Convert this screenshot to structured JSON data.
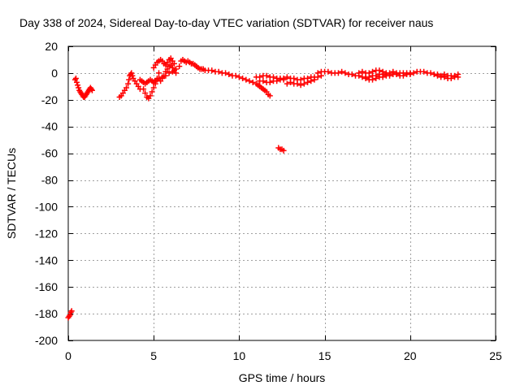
{
  "chart_data": {
    "type": "scatter",
    "title": "Day 338 of 2024, Sidereal Day-to-day VTEC variation (SDTVAR) for receiver naus",
    "xlabel": "GPS time / hours",
    "ylabel": "SDTVAR / TECUs",
    "xlim": [
      0,
      25
    ],
    "ylim": [
      -200,
      20
    ],
    "xticks": [
      0,
      5,
      10,
      15,
      20,
      25
    ],
    "yticks": [
      -200,
      -180,
      -160,
      -140,
      -120,
      -100,
      -80,
      -60,
      -40,
      -20,
      0,
      20
    ],
    "grid": true,
    "marker": "plus",
    "series": [
      {
        "name": "SDTVAR",
        "color": "#ff0000",
        "points": [
          [
            0.0,
            -183
          ],
          [
            0.05,
            -182
          ],
          [
            0.1,
            -181
          ],
          [
            0.15,
            -179
          ],
          [
            0.2,
            -178
          ],
          [
            0.4,
            -5
          ],
          [
            0.45,
            -4
          ],
          [
            0.5,
            -7
          ],
          [
            0.55,
            -9
          ],
          [
            0.6,
            -11
          ],
          [
            0.65,
            -13
          ],
          [
            0.7,
            -14
          ],
          [
            0.75,
            -15
          ],
          [
            0.8,
            -16
          ],
          [
            0.85,
            -17
          ],
          [
            0.9,
            -18
          ],
          [
            0.95,
            -18
          ],
          [
            1.0,
            -17
          ],
          [
            1.05,
            -16
          ],
          [
            1.1,
            -15
          ],
          [
            1.15,
            -14
          ],
          [
            1.2,
            -13
          ],
          [
            1.25,
            -12
          ],
          [
            1.3,
            -11
          ],
          [
            1.35,
            -12
          ],
          [
            1.4,
            -13
          ],
          [
            3.0,
            -18
          ],
          [
            3.1,
            -17
          ],
          [
            3.2,
            -15
          ],
          [
            3.3,
            -13
          ],
          [
            3.4,
            -11
          ],
          [
            3.5,
            -8
          ],
          [
            3.55,
            -5
          ],
          [
            3.6,
            -2
          ],
          [
            3.65,
            -1
          ],
          [
            3.7,
            0
          ],
          [
            3.75,
            -2
          ],
          [
            3.8,
            -4
          ],
          [
            3.9,
            -6
          ],
          [
            4.0,
            -8
          ],
          [
            4.1,
            -10
          ],
          [
            4.2,
            -12
          ],
          [
            4.2,
            -5
          ],
          [
            4.3,
            -6
          ],
          [
            4.4,
            -7
          ],
          [
            4.5,
            -8
          ],
          [
            4.6,
            -7
          ],
          [
            4.7,
            -6
          ],
          [
            4.8,
            -5
          ],
          [
            4.9,
            -6
          ],
          [
            5.0,
            -7
          ],
          [
            5.1,
            -6
          ],
          [
            5.2,
            -5
          ],
          [
            4.4,
            -12
          ],
          [
            4.5,
            -15
          ],
          [
            4.6,
            -18
          ],
          [
            4.7,
            -19
          ],
          [
            4.8,
            -17
          ],
          [
            4.9,
            -14
          ],
          [
            5.0,
            -11
          ],
          [
            5.1,
            -8
          ],
          [
            5.2,
            -4
          ],
          [
            5.3,
            0
          ],
          [
            5.0,
            4
          ],
          [
            5.1,
            6
          ],
          [
            5.2,
            8
          ],
          [
            5.3,
            9
          ],
          [
            5.4,
            10
          ],
          [
            5.5,
            9
          ],
          [
            5.6,
            7
          ],
          [
            5.7,
            6
          ],
          [
            5.8,
            8
          ],
          [
            5.9,
            10
          ],
          [
            6.0,
            11
          ],
          [
            6.1,
            9
          ],
          [
            6.2,
            7
          ],
          [
            5.4,
            -6
          ],
          [
            5.5,
            -4
          ],
          [
            5.6,
            -2
          ],
          [
            5.7,
            1
          ],
          [
            5.8,
            3
          ],
          [
            5.9,
            5
          ],
          [
            6.0,
            6
          ],
          [
            6.1,
            4
          ],
          [
            6.2,
            2
          ],
          [
            6.3,
            0
          ],
          [
            5.3,
            -4
          ],
          [
            5.5,
            -3
          ],
          [
            5.7,
            -2
          ],
          [
            5.9,
            0
          ],
          [
            6.1,
            1
          ],
          [
            6.3,
            3
          ],
          [
            6.5,
            5
          ],
          [
            6.6,
            9
          ],
          [
            6.7,
            10
          ],
          [
            6.8,
            9
          ],
          [
            6.9,
            8
          ],
          [
            7.0,
            9
          ],
          [
            7.1,
            8
          ],
          [
            7.2,
            7
          ],
          [
            7.3,
            7
          ],
          [
            7.4,
            6
          ],
          [
            7.5,
            5
          ],
          [
            7.6,
            4
          ],
          [
            7.7,
            3
          ],
          [
            7.8,
            3
          ],
          [
            7.9,
            3
          ],
          [
            8.0,
            2
          ],
          [
            8.2,
            2
          ],
          [
            8.4,
            2
          ],
          [
            8.6,
            1
          ],
          [
            8.8,
            1
          ],
          [
            9.0,
            0
          ],
          [
            9.2,
            0
          ],
          [
            9.4,
            -1
          ],
          [
            9.6,
            -2
          ],
          [
            9.8,
            -2
          ],
          [
            10.0,
            -3
          ],
          [
            10.2,
            -4
          ],
          [
            10.4,
            -5
          ],
          [
            10.6,
            -6
          ],
          [
            10.8,
            -7
          ],
          [
            11.0,
            -8
          ],
          [
            11.1,
            -9
          ],
          [
            11.2,
            -10
          ],
          [
            11.3,
            -11
          ],
          [
            11.4,
            -12
          ],
          [
            11.5,
            -13
          ],
          [
            11.6,
            -14
          ],
          [
            11.7,
            -16
          ],
          [
            11.8,
            -17
          ],
          [
            11.0,
            -3
          ],
          [
            11.2,
            -3
          ],
          [
            11.4,
            -2
          ],
          [
            11.6,
            -2
          ],
          [
            11.8,
            -3
          ],
          [
            12.0,
            -3
          ],
          [
            12.2,
            -4
          ],
          [
            12.4,
            -4
          ],
          [
            12.6,
            -4
          ],
          [
            11.2,
            -6
          ],
          [
            11.4,
            -6
          ],
          [
            11.6,
            -7
          ],
          [
            11.8,
            -7
          ],
          [
            12.0,
            -6
          ],
          [
            12.2,
            -6
          ],
          [
            12.4,
            -5
          ],
          [
            12.6,
            -5
          ],
          [
            12.3,
            -56
          ],
          [
            12.4,
            -57
          ],
          [
            12.5,
            -57
          ],
          [
            12.6,
            -58
          ],
          [
            12.8,
            -3
          ],
          [
            13.0,
            -4
          ],
          [
            13.2,
            -4
          ],
          [
            13.4,
            -5
          ],
          [
            13.6,
            -5
          ],
          [
            13.8,
            -4
          ],
          [
            14.0,
            -4
          ],
          [
            14.2,
            -3
          ],
          [
            14.4,
            -3
          ],
          [
            12.8,
            -8
          ],
          [
            13.0,
            -7
          ],
          [
            13.2,
            -8
          ],
          [
            13.4,
            -8
          ],
          [
            13.6,
            -9
          ],
          [
            13.8,
            -8
          ],
          [
            14.0,
            -7
          ],
          [
            14.2,
            -6
          ],
          [
            14.4,
            -5
          ],
          [
            14.6,
            -3
          ],
          [
            14.8,
            -2
          ],
          [
            14.6,
            0
          ],
          [
            14.8,
            1
          ],
          [
            15.0,
            1
          ],
          [
            15.2,
            1
          ],
          [
            15.4,
            0
          ],
          [
            15.6,
            0
          ],
          [
            15.8,
            0
          ],
          [
            16.0,
            1
          ],
          [
            16.2,
            0
          ],
          [
            16.4,
            -1
          ],
          [
            16.6,
            -1
          ],
          [
            16.8,
            -2
          ],
          [
            17.0,
            -2
          ],
          [
            17.2,
            -3
          ],
          [
            17.4,
            -4
          ],
          [
            17.6,
            -5
          ],
          [
            17.8,
            -5
          ],
          [
            18.0,
            -4
          ],
          [
            18.2,
            -3
          ],
          [
            18.4,
            -3
          ],
          [
            18.6,
            -2
          ],
          [
            18.8,
            -2
          ],
          [
            19.0,
            -1
          ],
          [
            19.2,
            -1
          ],
          [
            19.4,
            -2
          ],
          [
            19.6,
            -2
          ],
          [
            19.8,
            -1
          ],
          [
            20.0,
            -1
          ],
          [
            17.0,
            0
          ],
          [
            17.2,
            1
          ],
          [
            17.4,
            0
          ],
          [
            17.6,
            0
          ],
          [
            17.8,
            1
          ],
          [
            18.0,
            2
          ],
          [
            18.2,
            2
          ],
          [
            18.4,
            1
          ],
          [
            18.6,
            0
          ],
          [
            18.8,
            0
          ],
          [
            19.0,
            1
          ],
          [
            19.2,
            0
          ],
          [
            19.4,
            0
          ],
          [
            19.6,
            0
          ],
          [
            19.8,
            0
          ],
          [
            20.0,
            0
          ],
          [
            17.4,
            -3
          ],
          [
            17.6,
            -3
          ],
          [
            17.8,
            -2
          ],
          [
            18.0,
            -2
          ],
          [
            18.2,
            -1
          ],
          [
            18.4,
            -1
          ],
          [
            18.6,
            -1
          ],
          [
            20.2,
            0
          ],
          [
            20.4,
            1
          ],
          [
            20.6,
            1
          ],
          [
            20.8,
            1
          ],
          [
            21.0,
            0
          ],
          [
            21.2,
            0
          ],
          [
            21.4,
            -1
          ],
          [
            21.6,
            -2
          ],
          [
            21.8,
            -3
          ],
          [
            22.0,
            -3
          ],
          [
            22.2,
            -4
          ],
          [
            22.4,
            -4
          ],
          [
            22.6,
            -3
          ],
          [
            22.8,
            -3
          ],
          [
            21.6,
            -1
          ],
          [
            21.8,
            -2
          ],
          [
            22.0,
            -1
          ],
          [
            22.2,
            -2
          ],
          [
            22.4,
            -2
          ],
          [
            22.6,
            -2
          ],
          [
            22.8,
            -1
          ]
        ]
      }
    ]
  }
}
